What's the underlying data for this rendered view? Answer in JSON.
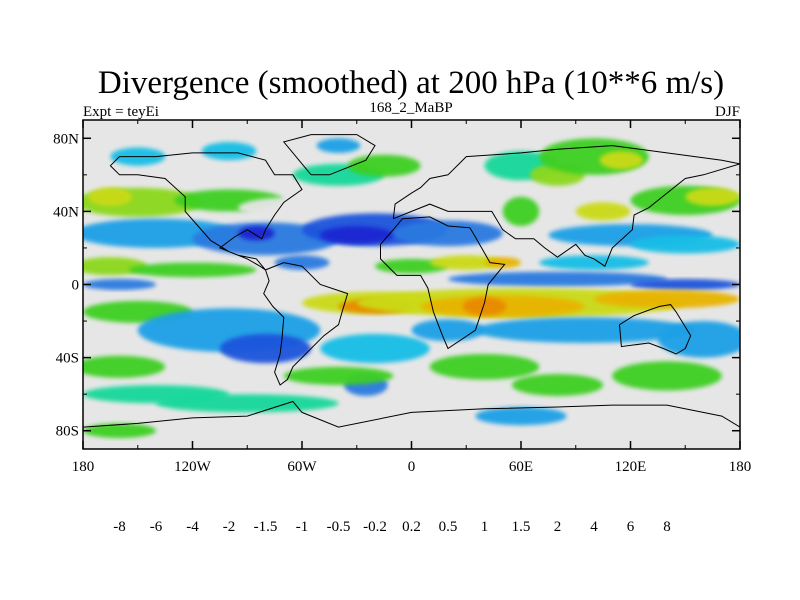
{
  "chart_data": {
    "type": "heatmap",
    "title": "Divergence (smoothed) at 200 hPa (10**6 m/s)",
    "subtitle_left": "Expt = teyEi",
    "subtitle_center": "168_2_MaBP",
    "subtitle_right": "DJF",
    "lon_range": [
      -180,
      180
    ],
    "lat_range": [
      -90,
      90
    ],
    "x_ticks": [
      {
        "value": -180,
        "label": "180"
      },
      {
        "value": -120,
        "label": "120W"
      },
      {
        "value": -60,
        "label": "60W"
      },
      {
        "value": 0,
        "label": "0"
      },
      {
        "value": 60,
        "label": "60E"
      },
      {
        "value": 120,
        "label": "120E"
      },
      {
        "value": 180,
        "label": "180"
      }
    ],
    "y_ticks": [
      {
        "value": 80,
        "label": "80N"
      },
      {
        "value": 40,
        "label": "40N"
      },
      {
        "value": 0,
        "label": "0"
      },
      {
        "value": -40,
        "label": "40S"
      },
      {
        "value": -80,
        "label": "80S"
      }
    ],
    "colorbar": {
      "colors": [
        "#7a1fe8",
        "#6a28e0",
        "#3b2ad8",
        "#1a28d2",
        "#1e55dc",
        "#2a7ae0",
        "#1ea0e6",
        "#12bde6",
        "#e6e6e6",
        "#18d89a",
        "#3ccf20",
        "#8cd81e",
        "#cada14",
        "#e8b400",
        "#e88a00",
        "#e65a0a",
        "#e2340c",
        "#e00a0a"
      ],
      "labels": [
        "-8",
        "-6",
        "-4",
        "-2",
        "-1.5",
        "-1",
        "-0.5",
        "-0.2",
        "0.2",
        "0.5",
        "1",
        "1.5",
        "2",
        "4",
        "6",
        "8"
      ]
    },
    "bands": [
      {
        "lat": 75,
        "value": -0.5,
        "note": "light blue patches over N Pacific"
      },
      {
        "lat": 45,
        "value": 1.5,
        "note": "yellow/green convergence-free band N Pacific"
      },
      {
        "lat": 25,
        "value": -2,
        "note": "strong convergence subtropics (blue)"
      },
      {
        "lat": 5,
        "value": 2,
        "note": "equatorial divergence (yellow/orange)"
      },
      {
        "lat": -5,
        "value": -4,
        "note": "convergence south of equator east hemisphere"
      },
      {
        "lat": -10,
        "value": 4,
        "note": "orange divergence band Africa to Pacific"
      },
      {
        "lat": -30,
        "value": -1.5,
        "note": "blue convergence over S Atlantic/Pacific"
      },
      {
        "lat": -50,
        "value": 1,
        "note": "green divergence Southern Ocean"
      },
      {
        "lat": -65,
        "value": 0.5,
        "note": "green band near Antarctica"
      }
    ]
  }
}
